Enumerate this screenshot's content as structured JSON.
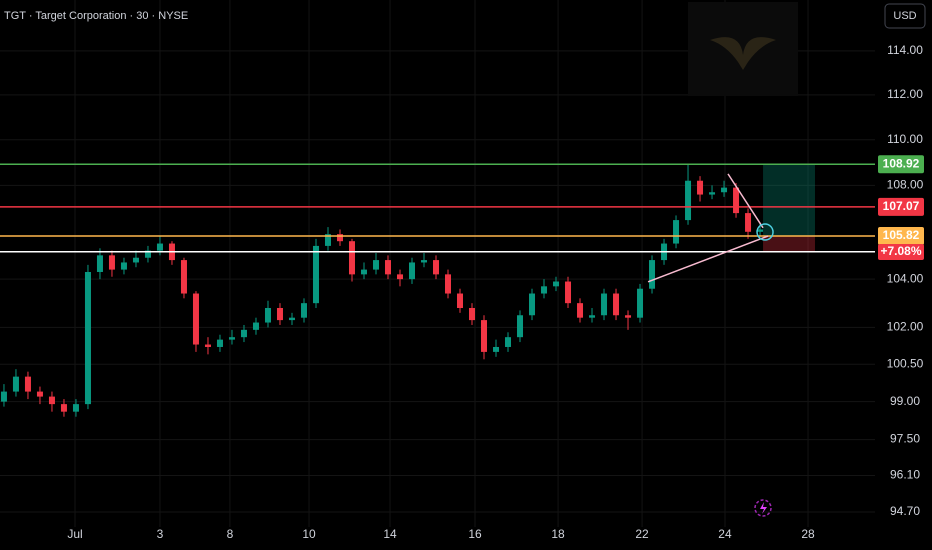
{
  "chart_data": {
    "type": "candlestick",
    "title": "TGT · Target Corporation · 30 · NYSE",
    "currency": "USD",
    "log_scale": true,
    "grid": true,
    "up_color": "#089981",
    "down_color": "#f23645",
    "ylim": [
      94.13,
      116.36
    ],
    "yticks": [
      {
        "value": 114,
        "label": "114.00"
      },
      {
        "value": 112,
        "label": "112.00"
      },
      {
        "value": 110,
        "label": "110.00"
      },
      {
        "value": 108,
        "label": "108.00"
      },
      {
        "value": 104,
        "label": "104.00"
      },
      {
        "value": 102,
        "label": "102.00"
      },
      {
        "value": 100.5,
        "label": "100.50"
      },
      {
        "value": 99,
        "label": "99.00"
      },
      {
        "value": 97.5,
        "label": "97.50"
      },
      {
        "value": 96.1,
        "label": "96.10"
      },
      {
        "value": 94.7,
        "label": "94.70"
      }
    ],
    "xlim": [
      -0.33,
      72.58
    ],
    "xticks": [
      {
        "value": 5.92,
        "label": "Jul"
      },
      {
        "value": 13,
        "label": "3"
      },
      {
        "value": 18.83,
        "label": "8"
      },
      {
        "value": 25.42,
        "label": "10"
      },
      {
        "value": 32.17,
        "label": "14"
      },
      {
        "value": 39.25,
        "label": "16"
      },
      {
        "value": 46.17,
        "label": "18"
      },
      {
        "value": 53.17,
        "label": "22"
      },
      {
        "value": 60.08,
        "label": "24"
      },
      {
        "value": 67,
        "label": "28"
      }
    ],
    "open": [
      99.0,
      99.4,
      100.0,
      99.4,
      99.2,
      98.9,
      98.6,
      98.9,
      104.3,
      105.0,
      104.4,
      104.7,
      104.9,
      105.2,
      105.5,
      104.8,
      103.4,
      101.3,
      101.2,
      101.5,
      101.6,
      101.9,
      102.2,
      102.8,
      102.3,
      102.4,
      103.0,
      105.4,
      105.9,
      105.6,
      104.2,
      104.4,
      104.8,
      104.2,
      104.0,
      104.7,
      104.8,
      104.2,
      103.4,
      102.8,
      102.3,
      101.0,
      101.2,
      101.6,
      102.5,
      103.4,
      103.7,
      103.9,
      103.0,
      102.4,
      102.5,
      103.4,
      102.5,
      102.4,
      103.6,
      104.8,
      105.5,
      106.5,
      108.2,
      107.6,
      107.7,
      107.9,
      106.8,
      106.0
    ],
    "high": [
      99.7,
      100.3,
      100.2,
      99.6,
      99.4,
      99.1,
      99.1,
      104.6,
      105.3,
      105.2,
      104.9,
      105.2,
      105.4,
      105.8,
      105.6,
      104.9,
      103.5,
      101.6,
      101.7,
      101.9,
      102.1,
      102.4,
      103.1,
      103.0,
      102.6,
      103.2,
      105.7,
      106.2,
      106.1,
      105.7,
      104.7,
      105.1,
      105.0,
      104.4,
      104.9,
      105.1,
      105.0,
      104.4,
      103.6,
      103.0,
      102.5,
      101.5,
      101.8,
      102.7,
      103.6,
      104.0,
      104.1,
      104.1,
      103.2,
      102.8,
      103.6,
      103.6,
      102.7,
      103.8,
      105.0,
      105.7,
      106.7,
      108.9,
      108.4,
      108.0,
      108.2,
      108.1,
      107.0,
      106.4
    ],
    "low": [
      98.8,
      99.2,
      99.1,
      98.9,
      98.6,
      98.4,
      98.4,
      98.7,
      104.0,
      104.1,
      104.2,
      104.5,
      104.7,
      105.0,
      104.6,
      103.2,
      101.0,
      100.9,
      101.0,
      101.3,
      101.4,
      101.7,
      102.0,
      102.1,
      102.1,
      102.2,
      102.8,
      105.2,
      105.4,
      103.9,
      104.0,
      104.2,
      104.0,
      103.7,
      103.8,
      104.5,
      104.0,
      103.2,
      102.6,
      102.1,
      100.7,
      100.8,
      101.0,
      101.4,
      102.3,
      103.2,
      103.5,
      102.8,
      102.2,
      102.2,
      102.3,
      102.3,
      101.9,
      102.2,
      103.4,
      104.6,
      105.3,
      106.3,
      107.3,
      107.4,
      107.5,
      106.6,
      105.7,
      105.8
    ],
    "close": [
      99.4,
      100.0,
      99.4,
      99.2,
      98.9,
      98.6,
      98.9,
      104.3,
      105.0,
      104.4,
      104.7,
      104.9,
      105.2,
      105.5,
      104.8,
      103.4,
      101.3,
      101.2,
      101.5,
      101.6,
      101.9,
      102.2,
      102.8,
      102.3,
      102.4,
      103.0,
      105.4,
      105.9,
      105.6,
      104.2,
      104.4,
      104.8,
      104.2,
      104.0,
      104.7,
      104.8,
      104.2,
      103.4,
      102.8,
      102.3,
      101.0,
      101.2,
      101.6,
      102.5,
      103.4,
      103.7,
      103.9,
      103.0,
      102.4,
      102.5,
      103.4,
      102.5,
      102.4,
      103.6,
      104.8,
      105.5,
      106.5,
      108.2,
      107.6,
      107.7,
      107.9,
      106.8,
      106.0,
      106.1
    ],
    "levels": [
      {
        "value": 108.92,
        "color": "#4caf50",
        "show_label": true
      },
      {
        "value": 107.07,
        "color": "#f23645",
        "show_label": true
      },
      {
        "value": 105.82,
        "color": "#ffb74d",
        "show_label": true
      },
      {
        "value": 105.15,
        "color": "#ffffff",
        "show_label": false
      }
    ],
    "change_label": "+7.08%",
    "trendlines": [
      {
        "x": [
          53.67,
          63.67
        ],
        "y": [
          103.89,
          105.82
        ],
        "color": "#f8bbd0"
      },
      {
        "x": [
          60.33,
          63.25
        ],
        "y": [
          108.5,
          106.17
        ],
        "color": "#f8bbd0"
      }
    ],
    "position": {
      "x": [
        63.25,
        67.58
      ],
      "target": 108.92,
      "entry": 105.82,
      "stop": 105.15
    }
  }
}
